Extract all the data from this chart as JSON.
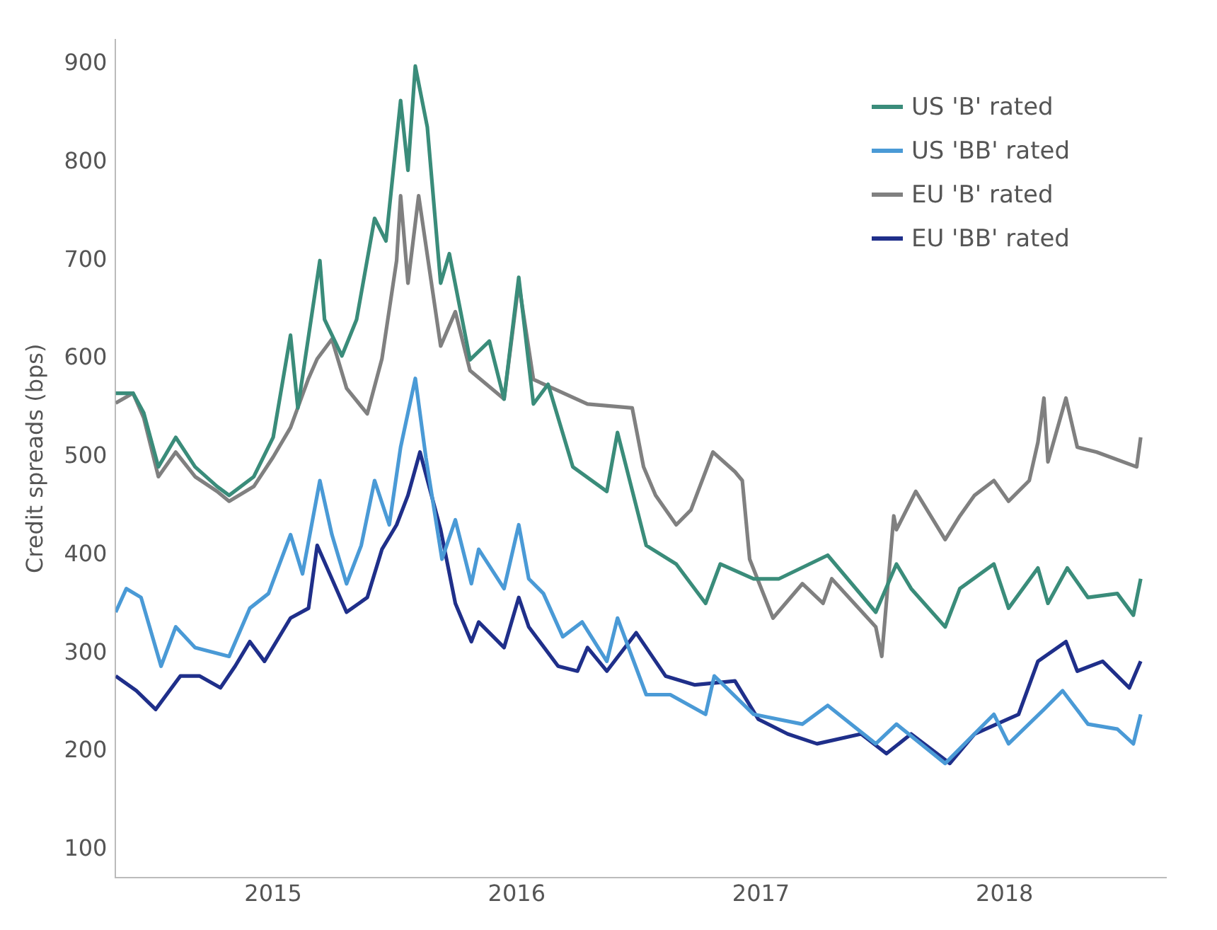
{
  "chart_data": {
    "type": "line",
    "ylabel": "Credit spreads (bps)",
    "xlim": [
      "2014-05-10",
      "2018-08-31"
    ],
    "xticks": [
      "2015",
      "2016",
      "2017",
      "2018"
    ],
    "ylim": [
      72,
      925
    ],
    "yticks": [
      100,
      200,
      300,
      400,
      500,
      600,
      700,
      800,
      900
    ],
    "grid": false,
    "legend": "top right",
    "series": [
      {
        "name": "US 'B' rated",
        "color": "#3a8c7a",
        "x": [
          "2014-05-10",
          "2014-06-05",
          "2014-06-21",
          "2014-07-13",
          "2014-08-08",
          "2014-09-06",
          "2014-10-09",
          "2014-10-27",
          "2014-12-03",
          "2015-01-01",
          "2015-01-27",
          "2015-02-07",
          "2015-03-12",
          "2015-03-19",
          "2015-04-14",
          "2015-05-06",
          "2015-06-02",
          "2015-06-19",
          "2015-07-11",
          "2015-07-22",
          "2015-08-02",
          "2015-08-20",
          "2015-09-09",
          "2015-09-22",
          "2015-10-23",
          "2015-11-21",
          "2015-12-13",
          "2016-01-04",
          "2016-01-26",
          "2016-02-17",
          "2016-03-25",
          "2016-05-15",
          "2016-05-31",
          "2016-07-13",
          "2016-08-27",
          "2016-10-10",
          "2016-11-01",
          "2016-12-21",
          "2017-01-28",
          "2017-04-11",
          "2017-06-22",
          "2017-07-23",
          "2017-08-14",
          "2017-10-04",
          "2017-10-26",
          "2017-12-16",
          "2018-01-07",
          "2018-02-20",
          "2018-03-07",
          "2018-04-05",
          "2018-05-06",
          "2018-06-19",
          "2018-07-13",
          "2018-07-24"
        ],
        "values": [
          565,
          565,
          545,
          490,
          520,
          490,
          470,
          461,
          480,
          520,
          624,
          550,
          700,
          640,
          603,
          640,
          743,
          720,
          863,
          792,
          898,
          836,
          677,
          707,
          599,
          618,
          559,
          683,
          554,
          574,
          490,
          465,
          525,
          410,
          391,
          351,
          391,
          376,
          376,
          400,
          342,
          391,
          366,
          327,
          366,
          391,
          346,
          387,
          351,
          387,
          357,
          361,
          339,
          376
        ]
      },
      {
        "name": "US 'BB' rated",
        "color": "#4a9ad6",
        "x": [
          "2014-05-10",
          "2014-05-26",
          "2014-06-17",
          "2014-07-17",
          "2014-08-08",
          "2014-09-06",
          "2014-10-27",
          "2014-11-27",
          "2014-12-25",
          "2015-01-27",
          "2015-02-14",
          "2015-03-12",
          "2015-03-30",
          "2015-04-21",
          "2015-05-13",
          "2015-06-02",
          "2015-06-24",
          "2015-07-11",
          "2015-08-02",
          "2015-08-18",
          "2015-09-11",
          "2015-10-01",
          "2015-10-25",
          "2015-11-05",
          "2015-12-13",
          "2016-01-04",
          "2016-01-19",
          "2016-02-10",
          "2016-03-10",
          "2016-04-08",
          "2016-05-15",
          "2016-05-31",
          "2016-07-13",
          "2016-08-18",
          "2016-10-10",
          "2016-10-23",
          "2016-12-21",
          "2017-03-04",
          "2017-04-11",
          "2017-06-22",
          "2017-07-23",
          "2017-10-04",
          "2017-12-16",
          "2018-01-07",
          "2018-03-01",
          "2018-03-29",
          "2018-05-06",
          "2018-06-19",
          "2018-07-13",
          "2018-07-24"
        ],
        "values": [
          342,
          366,
          357,
          287,
          327,
          306,
          297,
          346,
          361,
          421,
          381,
          476,
          421,
          371,
          410,
          476,
          431,
          510,
          580,
          499,
          396,
          436,
          371,
          406,
          366,
          431,
          376,
          361,
          317,
          332,
          292,
          336,
          258,
          258,
          238,
          277,
          238,
          228,
          247,
          208,
          228,
          188,
          238,
          208,
          243,
          262,
          228,
          223,
          208,
          238
        ]
      },
      {
        "name": "EU 'B' rated",
        "color": "#808080",
        "x": [
          "2014-05-10",
          "2014-06-05",
          "2014-06-21",
          "2014-07-13",
          "2014-08-08",
          "2014-09-06",
          "2014-10-09",
          "2014-10-27",
          "2014-12-03",
          "2015-01-01",
          "2015-01-27",
          "2015-02-23",
          "2015-03-08",
          "2015-03-30",
          "2015-04-21",
          "2015-05-22",
          "2015-06-13",
          "2015-07-05",
          "2015-07-11",
          "2015-07-22",
          "2015-08-07",
          "2015-09-09",
          "2015-10-01",
          "2015-10-23",
          "2015-12-13",
          "2016-01-04",
          "2016-01-26",
          "2016-04-16",
          "2016-06-22",
          "2016-07-09",
          "2016-07-27",
          "2016-08-27",
          "2016-09-18",
          "2016-10-21",
          "2016-11-23",
          "2016-12-04",
          "2016-12-15",
          "2017-01-19",
          "2017-03-04",
          "2017-04-04",
          "2017-04-17",
          "2017-06-22",
          "2017-07-01",
          "2017-07-19",
          "2017-07-23",
          "2017-08-21",
          "2017-10-04",
          "2017-10-26",
          "2017-11-17",
          "2017-12-16",
          "2018-01-07",
          "2018-02-07",
          "2018-02-20",
          "2018-03-01",
          "2018-03-07",
          "2018-04-03",
          "2018-04-20",
          "2018-05-19",
          "2018-07-18",
          "2018-07-24"
        ],
        "values": [
          555,
          565,
          540,
          480,
          505,
          480,
          465,
          455,
          470,
          500,
          530,
          580,
          600,
          620,
          570,
          544,
          600,
          700,
          766,
          677,
          766,
          613,
          648,
          588,
          559,
          677,
          579,
          554,
          550,
          490,
          461,
          431,
          446,
          505,
          485,
          476,
          396,
          336,
          371,
          351,
          376,
          327,
          297,
          440,
          426,
          465,
          416,
          440,
          461,
          476,
          455,
          476,
          515,
          560,
          495,
          560,
          510,
          505,
          490,
          520
        ]
      },
      {
        "name": "EU 'BB' rated",
        "color": "#1f2f8a",
        "x": [
          "2014-05-10",
          "2014-06-10",
          "2014-07-09",
          "2014-08-15",
          "2014-09-13",
          "2014-10-14",
          "2014-11-05",
          "2014-11-27",
          "2014-12-19",
          "2015-01-27",
          "2015-02-23",
          "2015-03-08",
          "2015-03-30",
          "2015-04-21",
          "2015-05-22",
          "2015-06-13",
          "2015-07-05",
          "2015-07-22",
          "2015-08-09",
          "2015-09-09",
          "2015-10-01",
          "2015-10-25",
          "2015-11-05",
          "2015-12-13",
          "2016-01-04",
          "2016-01-19",
          "2016-03-03",
          "2016-04-01",
          "2016-04-16",
          "2016-05-15",
          "2016-06-28",
          "2016-08-11",
          "2016-09-24",
          "2016-11-23",
          "2016-12-28",
          "2017-02-10",
          "2017-03-26",
          "2017-05-31",
          "2017-07-08",
          "2017-08-14",
          "2017-10-11",
          "2017-11-17",
          "2018-01-22",
          "2018-02-20",
          "2018-04-03",
          "2018-04-20",
          "2018-05-28",
          "2018-07-07",
          "2018-07-24"
        ],
        "values": [
          277,
          262,
          243,
          277,
          277,
          265,
          287,
          312,
          292,
          336,
          346,
          410,
          376,
          342,
          357,
          406,
          431,
          461,
          505,
          426,
          351,
          312,
          332,
          306,
          357,
          327,
          287,
          282,
          306,
          282,
          321,
          277,
          268,
          272,
          233,
          218,
          208,
          218,
          198,
          218,
          188,
          218,
          238,
          292,
          312,
          282,
          292,
          265,
          292
        ]
      }
    ]
  }
}
